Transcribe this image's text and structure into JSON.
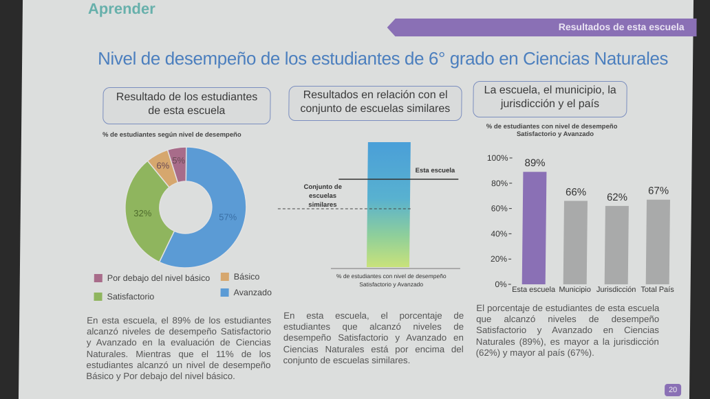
{
  "header": {
    "logo_text": "Aprender",
    "banner": "Resultados de esta escuela",
    "title": "Nivel de desempeño de los estudiantes de 6° grado en Ciencias Naturales",
    "page_number": "20"
  },
  "colors": {
    "purple": "#8a70b5",
    "blue": "#5b9bd5",
    "green": "#8fb55e",
    "orange": "#d6a76e",
    "mauve": "#a86c8a",
    "gray_bar": "#a9aaaa"
  },
  "sections": {
    "left_heading": "Resultado de los estudiantes de esta escuela",
    "mid_heading": "Resultados en relación con el conjunto de escuelas similares",
    "right_heading": "La escuela, el municipio, la jurisdicción y el país"
  },
  "chart_data": [
    {
      "type": "pie",
      "title": "% de estudiantes según nivel de desempeño",
      "categories": [
        "Por debajo del nivel básico",
        "Básico",
        "Satisfactorio",
        "Avanzado"
      ],
      "values": [
        5,
        6,
        32,
        57
      ],
      "labels": [
        "5%",
        "6%",
        "32%",
        "57%"
      ],
      "colors": [
        "#a86c8a",
        "#d6a76e",
        "#8fb55e",
        "#5b9bd5"
      ]
    },
    {
      "type": "bar",
      "title": "% de estudiantes con nivel de desempeño Satisfactorio y Avanzado",
      "annotations": [
        "Esta escuela",
        "Conjunto de escuelas similares"
      ]
    },
    {
      "type": "bar",
      "title": "% de estudiantes con nivel de desempeño Satisfactorio y Avanzado",
      "categories": [
        "Esta escuela",
        "Municipio",
        "Jurisdicción",
        "Total País"
      ],
      "values": [
        89,
        66,
        62,
        67
      ],
      "labels": [
        "89%",
        "66%",
        "62%",
        "67%"
      ],
      "ylim": [
        0,
        100
      ],
      "yticks": [
        "0%",
        "20%",
        "40%",
        "60%",
        "80%",
        "100%"
      ],
      "colors": [
        "#8a70b5",
        "#a9aaaa",
        "#a9aaaa",
        "#a9aaaa"
      ]
    }
  ],
  "legend": {
    "below_basic": "Por debajo del nivel básico",
    "basic": "Básico",
    "satisfactory": "Satisfactorio",
    "advanced": "Avanzado"
  },
  "mid_chart": {
    "school_label": "Esta escuela",
    "similar_label": "Conjunto de escuelas similares",
    "similar_line1": "Conjunto de",
    "similar_line2": "escuelas",
    "similar_line3": "similares",
    "axis_caption_line1": "% de estudiantes con nivel de desempeño",
    "axis_caption_line2": "Satisfactorio y Avanzado"
  },
  "right_chart": {
    "caption_line1": "% de estudiantes con nivel de desempeño",
    "caption_line2": "Satisfactorio y Avanzado"
  },
  "paragraphs": {
    "left": "En esta escuela, el 89% de los estudiantes alcanzó niveles de desempeño Satisfactorio y Avanzado en la evaluación de Ciencias Naturales. Mientras que el 11% de los estudiantes alcanzó un nivel de desempeño Básico y Por debajo del nivel básico.",
    "mid": "En esta escuela, el porcentaje de estudiantes que alcanzó niveles de desempeño Satisfactorio y Avanzado en Ciencias Naturales está por encima del conjunto de escuelas similares.",
    "right": "El porcentaje de estudiantes de esta escuela que alcanzó niveles de desempeño Satisfactorio y Avanzado en Ciencias Naturales (89%), es mayor a la jurisdicción (62%) y mayor al país (67%)."
  }
}
